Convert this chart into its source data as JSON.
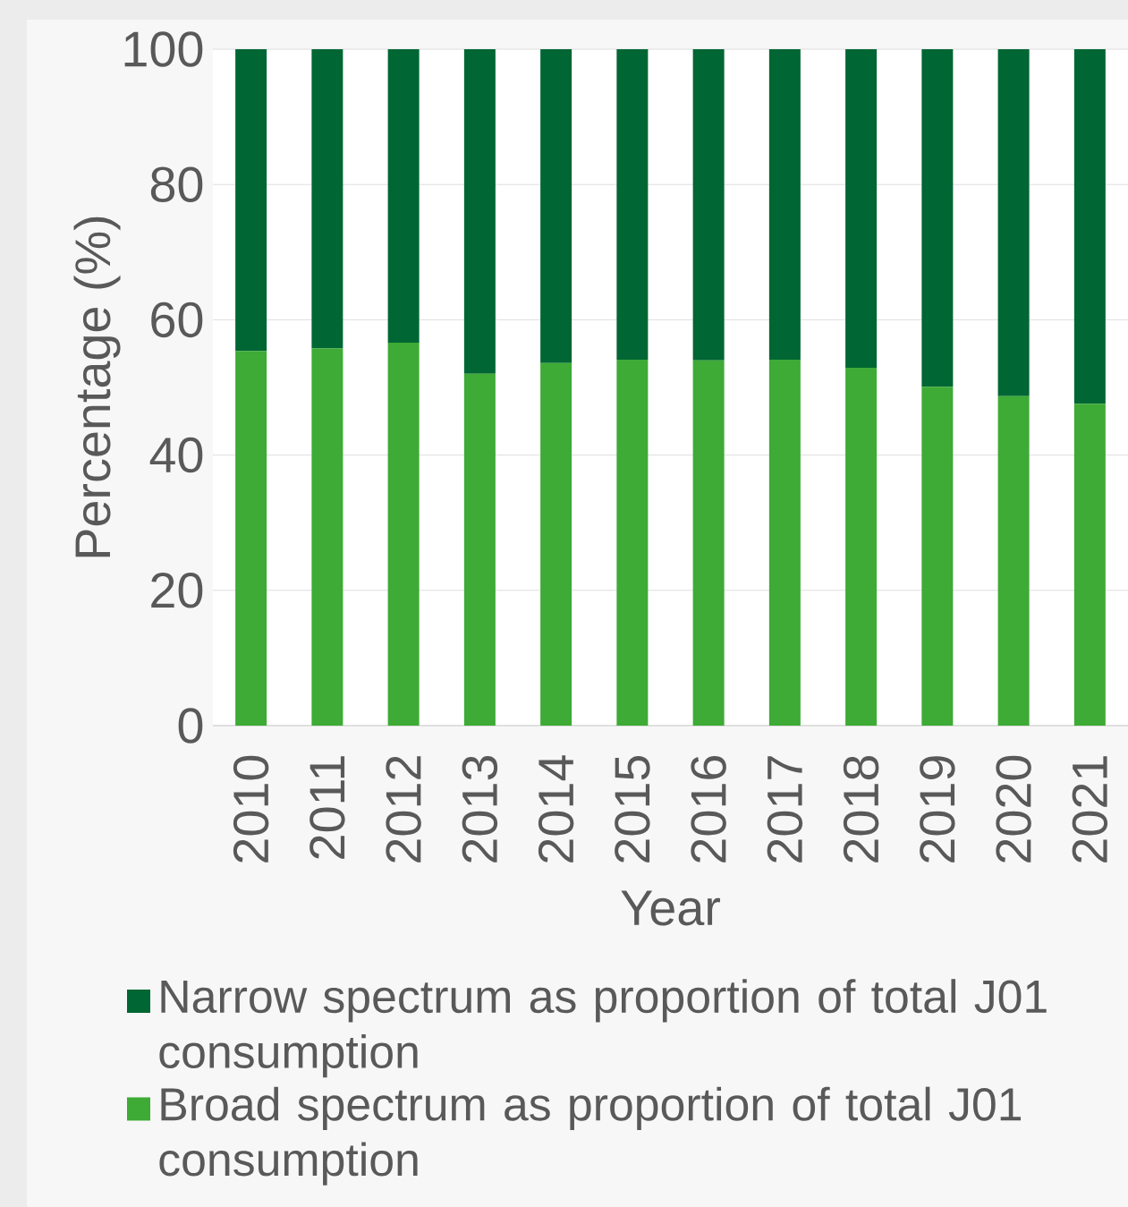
{
  "chart_data": {
    "type": "bar",
    "stacked": true,
    "xlabel": "Year",
    "ylabel": "Percentage (%)",
    "categories": [
      "2010",
      "2011",
      "2012",
      "2013",
      "2014",
      "2015",
      "2016",
      "2017",
      "2018",
      "2019",
      "2020",
      "2021"
    ],
    "series": [
      {
        "name": "Broad spectrum as proportion of total J01 consumption",
        "color": "#3dab35",
        "values": [
          55.4,
          55.8,
          56.6,
          52.0,
          53.6,
          54.1,
          54.0,
          54.1,
          52.9,
          50.1,
          48.7,
          47.6
        ]
      },
      {
        "name": "Narrow spectrum as proportion of total J01 consumption",
        "color": "#006633",
        "values": [
          44.6,
          44.2,
          43.4,
          48.0,
          46.4,
          45.9,
          46.0,
          45.9,
          47.1,
          49.9,
          51.3,
          52.4
        ]
      }
    ],
    "ylim": [
      0,
      100
    ],
    "yticks": [
      0,
      20,
      40,
      60,
      80,
      100
    ],
    "grid": "y",
    "legend": "bottom"
  }
}
